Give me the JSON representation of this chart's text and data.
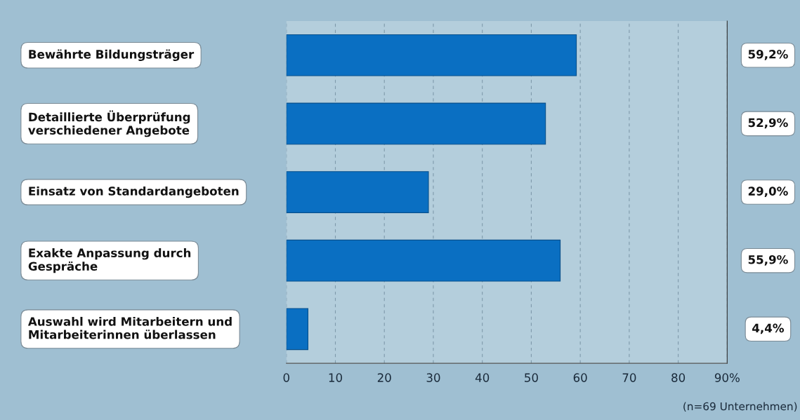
{
  "chart_data": {
    "type": "bar",
    "orientation": "horizontal",
    "categories": [
      "Bewährte Bildungsträger",
      "Detaillierte Überprüfung\nverschiedener Angebote",
      "Einsatz von Standardangeboten",
      "Exakte Anpassung durch\nGespräche",
      "Auswahl wird Mitarbeitern und\nMitarbeiterinnen überlassen"
    ],
    "values": [
      59.2,
      52.9,
      29.0,
      55.9,
      4.4
    ],
    "value_labels": [
      "59,2%",
      "52,9%",
      "29,0%",
      "55,9%",
      "4,4%"
    ],
    "color": "#0a6fc2",
    "xlim": [
      0,
      90
    ],
    "xticks": [
      0,
      10,
      20,
      30,
      40,
      50,
      60,
      70,
      80,
      {
        "value": 90,
        "label": "90%"
      }
    ],
    "grid": "x",
    "annotations": [
      "(n=69 Unternehmen)"
    ]
  }
}
